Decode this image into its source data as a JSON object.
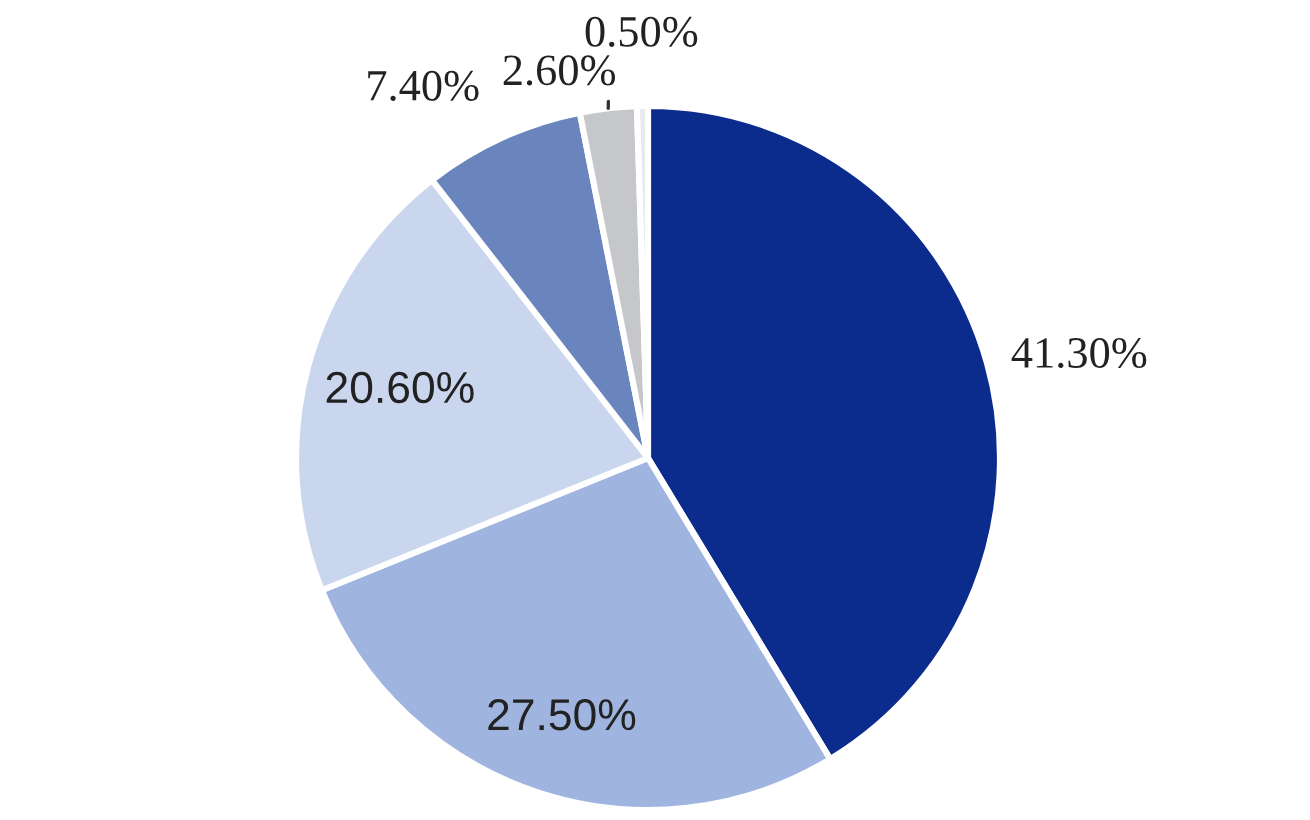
{
  "chart_data": {
    "type": "pie",
    "categories": [
      null,
      null,
      null,
      null,
      null,
      null
    ],
    "values": [
      41.3,
      27.5,
      20.6,
      7.4,
      2.6,
      0.5
    ],
    "colors": [
      "#0b2c8c",
      "#9fb5df",
      "#c9d6ee",
      "#6a84bd",
      "#c6c7ca",
      "#e6e9ef"
    ],
    "value_labels": [
      "41.30%",
      "27.50%",
      "20.60%",
      "7.40%",
      "2.60%",
      "0.50%"
    ]
  }
}
